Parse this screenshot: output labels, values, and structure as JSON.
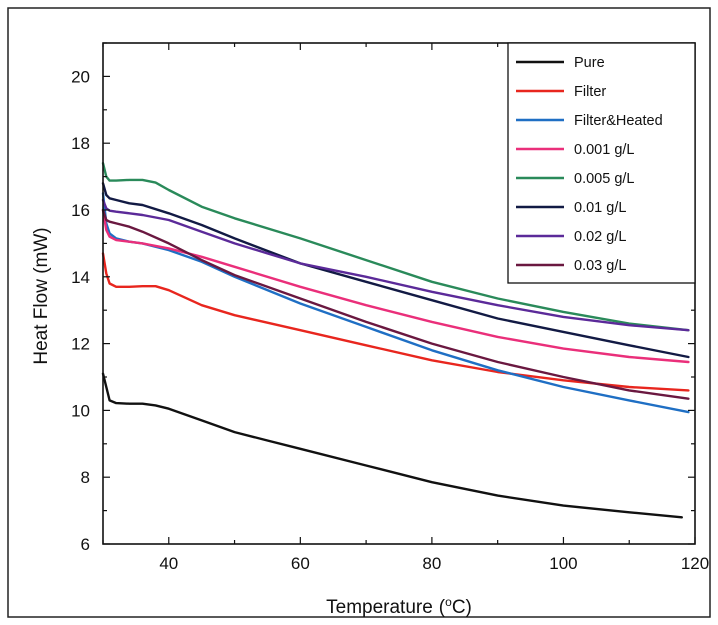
{
  "chart_data": {
    "type": "line",
    "xlabel": "Temperature",
    "xunit": "°C",
    "ylabel": "Heat Flow (mW)",
    "xlim": [
      30,
      120
    ],
    "ylim": [
      6,
      21
    ],
    "xticks": [
      40,
      60,
      80,
      100,
      120
    ],
    "yticks": [
      6,
      8,
      10,
      12,
      14,
      16,
      18,
      20
    ],
    "legend_position": "top-right",
    "grid": false,
    "series": [
      {
        "name": "Pure",
        "color": "#111111",
        "x": [
          30,
          30.5,
          31,
          32,
          34,
          36,
          38,
          40,
          45,
          50,
          55,
          60,
          70,
          80,
          90,
          100,
          110,
          118
        ],
        "y": [
          11.1,
          10.7,
          10.3,
          10.22,
          10.2,
          10.2,
          10.15,
          10.05,
          9.7,
          9.35,
          9.1,
          8.85,
          8.35,
          7.85,
          7.45,
          7.15,
          6.95,
          6.8
        ]
      },
      {
        "name": "Filter",
        "color": "#e8261e",
        "x": [
          30,
          30.5,
          31,
          32,
          34,
          36,
          38,
          40,
          45,
          50,
          60,
          70,
          80,
          90,
          100,
          110,
          119
        ],
        "y": [
          14.7,
          14.1,
          13.8,
          13.7,
          13.7,
          13.72,
          13.72,
          13.6,
          13.15,
          12.85,
          12.4,
          11.95,
          11.5,
          11.15,
          10.9,
          10.7,
          10.6
        ]
      },
      {
        "name": "Filter&Heated",
        "color": "#1f6fc4",
        "x": [
          30,
          30.5,
          31,
          32,
          34,
          36,
          40,
          45,
          50,
          60,
          70,
          80,
          90,
          100,
          110,
          119
        ],
        "y": [
          16.5,
          15.6,
          15.3,
          15.15,
          15.05,
          15.0,
          14.8,
          14.45,
          14.0,
          13.2,
          12.5,
          11.8,
          11.2,
          10.7,
          10.3,
          9.95
        ]
      },
      {
        "name": "0.001 g/L",
        "color": "#ea2f7a",
        "x": [
          30,
          30.5,
          31,
          32,
          34,
          36,
          40,
          45,
          50,
          60,
          70,
          80,
          90,
          100,
          110,
          119
        ],
        "y": [
          16.0,
          15.4,
          15.2,
          15.1,
          15.05,
          15.0,
          14.85,
          14.6,
          14.3,
          13.7,
          13.15,
          12.65,
          12.2,
          11.85,
          11.6,
          11.45
        ]
      },
      {
        "name": "0.005 g/L",
        "color": "#2a8a5a",
        "x": [
          30,
          30.5,
          31,
          32,
          34,
          36,
          38,
          40,
          45,
          50,
          60,
          70,
          80,
          90,
          100,
          110,
          119
        ],
        "y": [
          17.4,
          17.0,
          16.88,
          16.88,
          16.9,
          16.9,
          16.82,
          16.6,
          16.1,
          15.75,
          15.15,
          14.5,
          13.85,
          13.35,
          12.95,
          12.6,
          12.4
        ]
      },
      {
        "name": "0.01 g/L",
        "color": "#121a44",
        "x": [
          30,
          30.5,
          31,
          32,
          34,
          36,
          40,
          45,
          50,
          60,
          70,
          80,
          90,
          100,
          110,
          119
        ],
        "y": [
          16.8,
          16.45,
          16.35,
          16.3,
          16.2,
          16.15,
          15.9,
          15.55,
          15.15,
          14.4,
          13.85,
          13.3,
          12.75,
          12.35,
          11.95,
          11.6
        ]
      },
      {
        "name": "0.02 g/L",
        "color": "#5b2a99",
        "x": [
          30,
          30.5,
          31,
          32,
          34,
          36,
          40,
          45,
          50,
          60,
          70,
          80,
          90,
          100,
          110,
          119
        ],
        "y": [
          16.3,
          16.05,
          15.98,
          15.95,
          15.9,
          15.85,
          15.7,
          15.35,
          15.0,
          14.4,
          14.0,
          13.55,
          13.15,
          12.8,
          12.55,
          12.4
        ]
      },
      {
        "name": "0.03 g/L",
        "color": "#6a1840",
        "x": [
          30,
          30.5,
          31,
          32,
          34,
          36,
          40,
          45,
          50,
          60,
          70,
          80,
          90,
          100,
          110,
          119
        ],
        "y": [
          16.0,
          15.7,
          15.65,
          15.6,
          15.5,
          15.35,
          15.0,
          14.5,
          14.05,
          13.35,
          12.65,
          12.0,
          11.45,
          11.0,
          10.6,
          10.35
        ]
      }
    ]
  }
}
